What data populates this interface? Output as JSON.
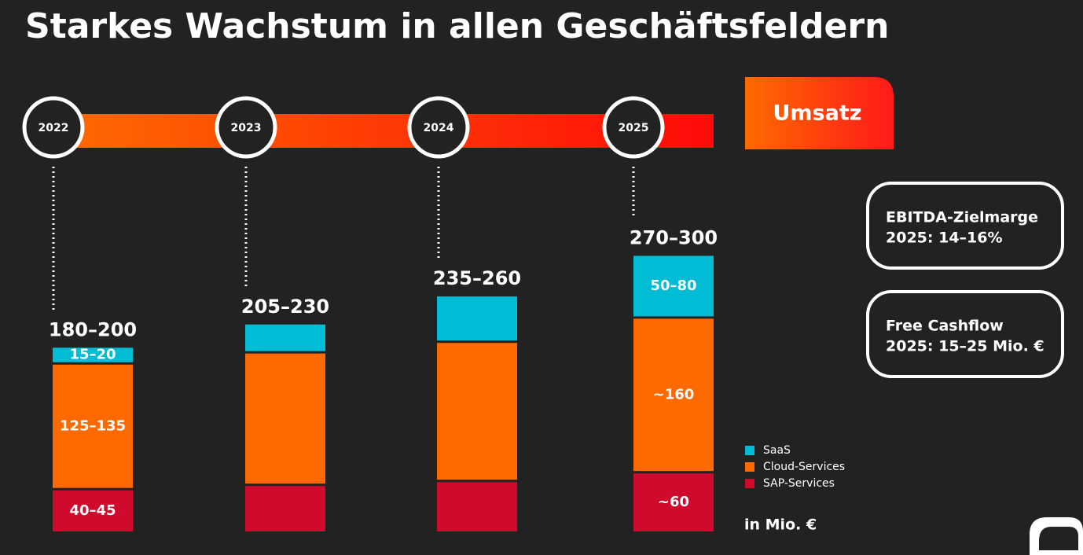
{
  "chart_data": {
    "type": "bar",
    "stacked": true,
    "title": "Starkes Wachstum in allen Geschäftsfeldern",
    "banner": "Umsatz",
    "categories": [
      "2022",
      "2023",
      "2024",
      "2025"
    ],
    "total_labels": [
      "180–200",
      "205–230",
      "235–260",
      "270–300"
    ],
    "series": [
      {
        "name": "SaaS",
        "color": "#00bcd4",
        "values": [
          17.5,
          30,
          48,
          65
        ],
        "value_labels": [
          "15–20",
          null,
          null,
          "50–80"
        ]
      },
      {
        "name": "Cloud-Services",
        "color": "#ff6a00",
        "values": [
          130,
          137,
          144,
          160
        ],
        "value_labels": [
          "125–135",
          null,
          null,
          "~160"
        ]
      },
      {
        "name": "SAP-Services",
        "color": "#d00a2c",
        "values": [
          42.5,
          47,
          51,
          60
        ],
        "value_labels": [
          "40–45",
          null,
          null,
          "~60"
        ]
      }
    ],
    "unit": "in Mio. €",
    "callouts": [
      {
        "heading": "EBITDA-Zielmarge",
        "text": "2025: 14–16%"
      },
      {
        "heading": "Free Cashflow",
        "text": "2025: 15–25 Mio. €"
      }
    ]
  }
}
